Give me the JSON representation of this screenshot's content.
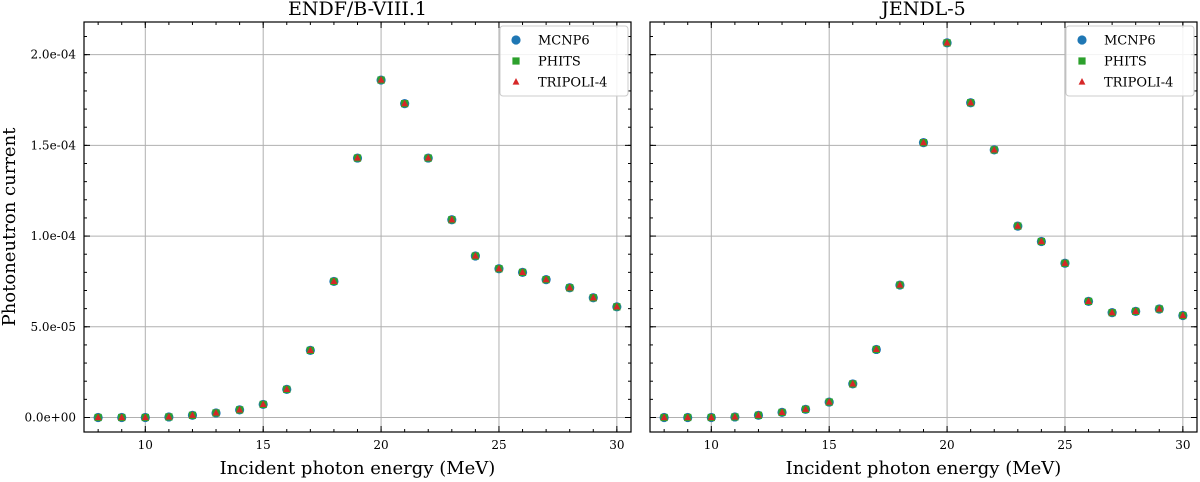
{
  "chart_data": [
    {
      "type": "scatter",
      "title": "ENDF/B-VIII.1",
      "xlabel": "Incident photon energy (MeV)",
      "ylabel": "Photoneutron current",
      "xlim": [
        7.4,
        30.6
      ],
      "ylim": [
        -8e-06,
        0.000218
      ],
      "xticks": [
        10,
        15,
        20,
        25,
        30
      ],
      "xtick_labels": [
        "10",
        "15",
        "20",
        "25",
        "30"
      ],
      "yticks": [
        0,
        5e-05,
        0.0001,
        0.00015,
        0.0002
      ],
      "ytick_labels": [
        "0.0e+00",
        "5.0e-05",
        "1.0e-04",
        "1.5e-04",
        "2.0e-04"
      ],
      "grid": true,
      "legend_position": "top-right",
      "x": [
        8,
        9,
        10,
        11,
        12,
        13,
        14,
        15,
        16,
        17,
        18,
        19,
        20,
        21,
        22,
        23,
        24,
        25,
        26,
        27,
        28,
        29,
        30
      ],
      "series": [
        {
          "name": "MCNP6",
          "marker": "circle",
          "color": "#1f77b4",
          "values": [
            0.0,
            0.0,
            0.0,
            3e-07,
            1.2e-06,
            2.5e-06,
            4.2e-06,
            7.2e-06,
            1.55e-05,
            3.7e-05,
            7.5e-05,
            0.000143,
            0.000186,
            0.000173,
            0.000143,
            0.000109,
            8.9e-05,
            8.2e-05,
            8e-05,
            7.6e-05,
            7.15e-05,
            6.6e-05,
            6.1e-05
          ]
        },
        {
          "name": "PHITS",
          "marker": "square",
          "color": "#2ca02c",
          "values": [
            0.0,
            0.0,
            0.0,
            3e-07,
            1.2e-06,
            2.5e-06,
            4.2e-06,
            7.2e-06,
            1.55e-05,
            3.7e-05,
            7.5e-05,
            0.000143,
            0.000186,
            0.000173,
            0.000143,
            0.000109,
            8.9e-05,
            8.2e-05,
            8e-05,
            7.6e-05,
            7.15e-05,
            6.6e-05,
            6.1e-05
          ]
        },
        {
          "name": "TRIPOLI-4",
          "marker": "triangle",
          "color": "#d62728",
          "values": [
            0.0,
            0.0,
            0.0,
            3e-07,
            1.2e-06,
            2.5e-06,
            4.2e-06,
            7.2e-06,
            1.55e-05,
            3.7e-05,
            7.5e-05,
            0.000143,
            0.000186,
            0.000173,
            0.000143,
            0.000109,
            8.9e-05,
            8.2e-05,
            8e-05,
            7.6e-05,
            7.15e-05,
            6.6e-05,
            6.1e-05
          ]
        }
      ]
    },
    {
      "type": "scatter",
      "title": "JENDL-5",
      "xlabel": "Incident photon energy (MeV)",
      "ylabel": "",
      "xlim": [
        7.4,
        30.6
      ],
      "ylim": [
        -8e-06,
        0.000218
      ],
      "xticks": [
        10,
        15,
        20,
        25,
        30
      ],
      "xtick_labels": [
        "10",
        "15",
        "20",
        "25",
        "30"
      ],
      "yticks": [
        0,
        5e-05,
        0.0001,
        0.00015,
        0.0002
      ],
      "ytick_labels": [],
      "grid": true,
      "legend_position": "top-right",
      "x": [
        8,
        9,
        10,
        11,
        12,
        13,
        14,
        15,
        16,
        17,
        18,
        19,
        20,
        21,
        22,
        23,
        24,
        25,
        26,
        27,
        28,
        29,
        30
      ],
      "series": [
        {
          "name": "MCNP6",
          "marker": "circle",
          "color": "#1f77b4",
          "values": [
            0.0,
            0.0,
            0.0,
            3e-07,
            1.2e-06,
            2.8e-06,
            4.5e-06,
            8.5e-06,
            1.85e-05,
            3.75e-05,
            7.3e-05,
            0.0001515,
            0.0002065,
            0.0001735,
            0.0001475,
            0.0001055,
            9.7e-05,
            8.5e-05,
            6.4e-05,
            5.78e-05,
            5.85e-05,
            5.98e-05,
            5.62e-05
          ]
        },
        {
          "name": "PHITS",
          "marker": "square",
          "color": "#2ca02c",
          "values": [
            0.0,
            0.0,
            0.0,
            3e-07,
            1.2e-06,
            2.8e-06,
            4.5e-06,
            8.5e-06,
            1.85e-05,
            3.75e-05,
            7.3e-05,
            0.0001515,
            0.0002065,
            0.0001735,
            0.0001475,
            0.0001055,
            9.7e-05,
            8.5e-05,
            6.4e-05,
            5.78e-05,
            5.85e-05,
            5.98e-05,
            5.62e-05
          ]
        },
        {
          "name": "TRIPOLI-4",
          "marker": "triangle",
          "color": "#d62728",
          "values": [
            0.0,
            0.0,
            0.0,
            3e-07,
            1.2e-06,
            2.8e-06,
            4.5e-06,
            8.5e-06,
            1.85e-05,
            3.75e-05,
            7.3e-05,
            0.0001515,
            0.0002065,
            0.0001735,
            0.0001475,
            0.0001055,
            9.7e-05,
            8.5e-05,
            6.4e-05,
            5.78e-05,
            5.85e-05,
            5.98e-05,
            5.62e-05
          ]
        }
      ]
    }
  ]
}
